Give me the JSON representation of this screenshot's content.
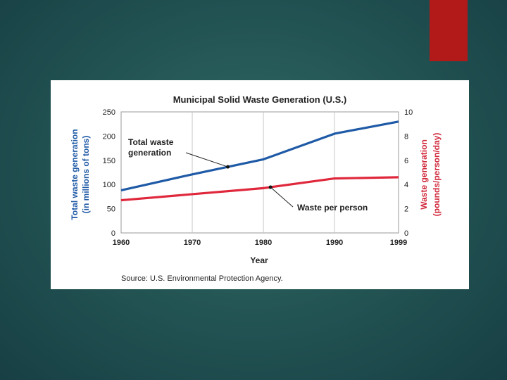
{
  "slide": {
    "accent_color": "#b21a1a",
    "background_color": "#245655"
  },
  "chart_data": {
    "type": "line",
    "title": "Municipal Solid Waste Generation (U.S.)",
    "xlabel": "Year",
    "ylabel_left": "Total waste generation (in millions of tons)",
    "ylabel_left_line1": "Total waste generation",
    "ylabel_left_line2": "(in millions of tons)",
    "ylabel_right": "Waste generation (pounds/person/day)",
    "ylabel_right_line1": "Waste generation",
    "ylabel_right_line2": "(pounds/person/day)",
    "source": "Source: U.S. Environmental Protection Agency.",
    "x_ticks": [
      "1960",
      "1970",
      "1980",
      "1990",
      "1999"
    ],
    "x_values": [
      1960,
      1970,
      1980,
      1990,
      1999
    ],
    "xlim": [
      1960,
      1999
    ],
    "y_left_ticks": [
      "0",
      "50",
      "100",
      "150",
      "200",
      "250"
    ],
    "y_left_lim": [
      0,
      250
    ],
    "y_right_ticks": [
      "0",
      "2",
      "4",
      "6",
      "8",
      "10"
    ],
    "y_right_lim": [
      0,
      10
    ],
    "grid": true,
    "series": [
      {
        "name": "Total waste generation",
        "axis": "left",
        "color": "#1f5aa6",
        "x": [
          1960,
          1970,
          1980,
          1990,
          1999
        ],
        "values": [
          88,
          121,
          152,
          205,
          230
        ]
      },
      {
        "name": "Waste per person",
        "axis": "right",
        "color": "#e0283c",
        "x": [
          1960,
          1970,
          1980,
          1990,
          1999
        ],
        "values": [
          2.7,
          3.2,
          3.7,
          4.5,
          4.6
        ]
      }
    ],
    "annotations": {
      "total_line1": "Total waste",
      "total_line2": "generation",
      "per_person": "Waste per person"
    }
  }
}
